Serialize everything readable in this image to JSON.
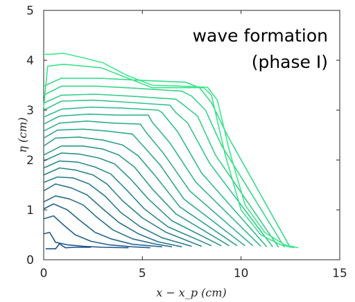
{
  "chart_data": {
    "type": "line",
    "title": "",
    "xlabel": "x − x_p (cm)",
    "ylabel": "η (cm)",
    "xlim": [
      0,
      15
    ],
    "ylim": [
      0,
      5
    ],
    "xticks": [
      "0",
      "5",
      "10",
      "15"
    ],
    "yticks": [
      "0",
      "1",
      "2",
      "3",
      "4",
      "5"
    ],
    "grid": false,
    "annotation": [
      "wave formation",
      "(phase I)"
    ],
    "color_start": "#1f4e8c",
    "color_end": "#3bea8a",
    "series": [
      {
        "values": [
          [
            0.1,
            0.22
          ],
          [
            0.6,
            0.22
          ],
          [
            0.8,
            0.32
          ],
          [
            1.1,
            0.24
          ],
          [
            1.6,
            0.25
          ],
          [
            2.4,
            0.25
          ]
        ]
      },
      {
        "values": [
          [
            0.0,
            0.52
          ],
          [
            0.3,
            0.55
          ],
          [
            0.6,
            0.35
          ],
          [
            1.2,
            0.3
          ],
          [
            2.0,
            0.27
          ],
          [
            3.0,
            0.25
          ],
          [
            4.3,
            0.24
          ]
        ]
      },
      {
        "values": [
          [
            0.0,
            0.82
          ],
          [
            0.5,
            0.88
          ],
          [
            1.0,
            0.7
          ],
          [
            1.6,
            0.5
          ],
          [
            2.4,
            0.37
          ],
          [
            3.3,
            0.3
          ],
          [
            4.5,
            0.26
          ],
          [
            5.4,
            0.24
          ]
        ]
      },
      {
        "values": [
          [
            0.0,
            1.02
          ],
          [
            0.5,
            1.12
          ],
          [
            1.2,
            1.0
          ],
          [
            1.8,
            0.8
          ],
          [
            2.6,
            0.55
          ],
          [
            3.4,
            0.42
          ],
          [
            4.5,
            0.31
          ],
          [
            6.0,
            0.26
          ]
        ]
      },
      {
        "values": [
          [
            0.0,
            1.16
          ],
          [
            0.6,
            1.28
          ],
          [
            1.3,
            1.22
          ],
          [
            2.0,
            1.1
          ],
          [
            2.7,
            0.85
          ],
          [
            3.5,
            0.6
          ],
          [
            4.5,
            0.42
          ],
          [
            5.6,
            0.32
          ],
          [
            6.5,
            0.26
          ]
        ]
      },
      {
        "values": [
          [
            0.0,
            1.38
          ],
          [
            0.6,
            1.52
          ],
          [
            1.4,
            1.44
          ],
          [
            2.2,
            1.3
          ],
          [
            3.0,
            1.02
          ],
          [
            3.8,
            0.75
          ],
          [
            4.8,
            0.52
          ],
          [
            5.8,
            0.36
          ],
          [
            7.0,
            0.26
          ]
        ]
      },
      {
        "values": [
          [
            0.0,
            1.55
          ],
          [
            0.7,
            1.66
          ],
          [
            1.5,
            1.64
          ],
          [
            2.3,
            1.52
          ],
          [
            3.1,
            1.28
          ],
          [
            3.9,
            0.95
          ],
          [
            4.9,
            0.66
          ],
          [
            6.0,
            0.44
          ],
          [
            7.5,
            0.27
          ]
        ]
      },
      {
        "values": [
          [
            0.0,
            1.7
          ],
          [
            0.8,
            1.84
          ],
          [
            1.6,
            1.8
          ],
          [
            2.5,
            1.7
          ],
          [
            3.2,
            1.52
          ],
          [
            4.0,
            1.18
          ],
          [
            5.0,
            0.84
          ],
          [
            6.2,
            0.55
          ],
          [
            8.0,
            0.27
          ]
        ]
      },
      {
        "values": [
          [
            0.0,
            1.84
          ],
          [
            0.8,
            1.98
          ],
          [
            1.7,
            1.96
          ],
          [
            2.6,
            1.86
          ],
          [
            3.4,
            1.72
          ],
          [
            4.2,
            1.4
          ],
          [
            5.1,
            1.02
          ],
          [
            6.3,
            0.66
          ],
          [
            8.5,
            0.28
          ]
        ]
      },
      {
        "values": [
          [
            0.0,
            1.98
          ],
          [
            0.9,
            2.14
          ],
          [
            1.8,
            2.12
          ],
          [
            2.8,
            2.04
          ],
          [
            3.6,
            1.92
          ],
          [
            4.4,
            1.62
          ],
          [
            5.3,
            1.22
          ],
          [
            6.5,
            0.78
          ],
          [
            9.0,
            0.28
          ]
        ]
      },
      {
        "values": [
          [
            0.0,
            2.1
          ],
          [
            0.9,
            2.28
          ],
          [
            2.0,
            2.28
          ],
          [
            3.0,
            2.22
          ],
          [
            3.8,
            2.1
          ],
          [
            4.6,
            1.86
          ],
          [
            5.5,
            1.42
          ],
          [
            6.7,
            0.92
          ],
          [
            9.4,
            0.28
          ]
        ]
      },
      {
        "values": [
          [
            0.0,
            2.28
          ],
          [
            0.6,
            2.44
          ],
          [
            1.8,
            2.46
          ],
          [
            3.0,
            2.4
          ],
          [
            4.0,
            2.3
          ],
          [
            4.8,
            2.08
          ],
          [
            5.7,
            1.66
          ],
          [
            6.9,
            1.06
          ],
          [
            9.8,
            0.28
          ]
        ]
      },
      {
        "values": [
          [
            0.0,
            2.44
          ],
          [
            0.7,
            2.6
          ],
          [
            2.0,
            2.62
          ],
          [
            3.2,
            2.58
          ],
          [
            4.5,
            2.52
          ],
          [
            5.0,
            2.3
          ],
          [
            5.9,
            1.9
          ],
          [
            7.1,
            1.22
          ],
          [
            10.2,
            0.28
          ]
        ]
      },
      {
        "values": [
          [
            0.0,
            2.58
          ],
          [
            0.8,
            2.74
          ],
          [
            2.2,
            2.78
          ],
          [
            3.5,
            2.74
          ],
          [
            4.9,
            2.72
          ],
          [
            5.2,
            2.55
          ],
          [
            6.1,
            2.12
          ],
          [
            7.4,
            1.38
          ],
          [
            10.6,
            0.28
          ]
        ]
      },
      {
        "values": [
          [
            0.0,
            2.72
          ],
          [
            0.8,
            2.88
          ],
          [
            2.3,
            2.92
          ],
          [
            3.8,
            2.9
          ],
          [
            5.3,
            2.9
          ],
          [
            5.5,
            2.76
          ],
          [
            6.4,
            2.34
          ],
          [
            7.7,
            1.56
          ],
          [
            11.0,
            0.27
          ]
        ]
      },
      {
        "values": [
          [
            0.0,
            2.86
          ],
          [
            0.9,
            3.02
          ],
          [
            2.4,
            3.06
          ],
          [
            4.0,
            3.04
          ],
          [
            5.8,
            3.0
          ],
          [
            6.0,
            2.95
          ],
          [
            6.8,
            2.56
          ],
          [
            8.0,
            1.74
          ],
          [
            11.3,
            0.26
          ]
        ]
      },
      {
        "values": [
          [
            0.0,
            3.0
          ],
          [
            0.9,
            3.18
          ],
          [
            2.5,
            3.2
          ],
          [
            4.2,
            3.16
          ],
          [
            6.4,
            3.1
          ],
          [
            6.7,
            2.95
          ],
          [
            7.3,
            2.74
          ],
          [
            8.4,
            1.94
          ],
          [
            11.6,
            0.26
          ]
        ]
      },
      {
        "values": [
          [
            0.0,
            3.14
          ],
          [
            0.9,
            3.3
          ],
          [
            2.6,
            3.32
          ],
          [
            4.4,
            3.28
          ],
          [
            6.7,
            3.22
          ],
          [
            7.1,
            3.1
          ],
          [
            7.8,
            2.88
          ],
          [
            8.7,
            2.1
          ],
          [
            11.9,
            0.25
          ]
        ]
      },
      {
        "values": [
          [
            0.0,
            3.3
          ],
          [
            0.9,
            3.48
          ],
          [
            2.7,
            3.48
          ],
          [
            4.6,
            3.44
          ],
          [
            7.0,
            3.38
          ],
          [
            7.5,
            3.28
          ],
          [
            8.2,
            3.0
          ],
          [
            9.0,
            2.3
          ],
          [
            12.2,
            0.25
          ]
        ]
      },
      {
        "values": [
          [
            0.0,
            3.48
          ],
          [
            0.9,
            3.64
          ],
          [
            2.8,
            3.64
          ],
          [
            4.8,
            3.6
          ],
          [
            7.2,
            3.56
          ],
          [
            7.9,
            3.45
          ],
          [
            8.5,
            3.15
          ],
          [
            9.3,
            2.5
          ],
          [
            12.5,
            0.24
          ]
        ]
      },
      {
        "values": [
          [
            0.0,
            3.05
          ],
          [
            0.2,
            3.88
          ],
          [
            1.0,
            3.92
          ],
          [
            2.9,
            3.85
          ],
          [
            4.4,
            3.62
          ],
          [
            5.5,
            3.45
          ],
          [
            7.0,
            3.45
          ],
          [
            8.1,
            3.45
          ],
          [
            8.5,
            3.3
          ],
          [
            9.2,
            2.1
          ],
          [
            10.0,
            1.0
          ],
          [
            11.0,
            0.5
          ],
          [
            12.0,
            0.3
          ],
          [
            12.7,
            0.24
          ]
        ]
      },
      {
        "values": [
          [
            0.0,
            4.12
          ],
          [
            0.3,
            4.12
          ],
          [
            1.0,
            4.14
          ],
          [
            2.0,
            4.05
          ],
          [
            3.0,
            3.95
          ],
          [
            4.2,
            3.7
          ],
          [
            5.5,
            3.5
          ],
          [
            7.0,
            3.48
          ],
          [
            8.3,
            3.46
          ],
          [
            8.8,
            3.2
          ],
          [
            9.4,
            2.2
          ],
          [
            10.2,
            1.1
          ],
          [
            11.2,
            0.55
          ],
          [
            12.2,
            0.3
          ],
          [
            12.9,
            0.24
          ]
        ]
      }
    ]
  }
}
